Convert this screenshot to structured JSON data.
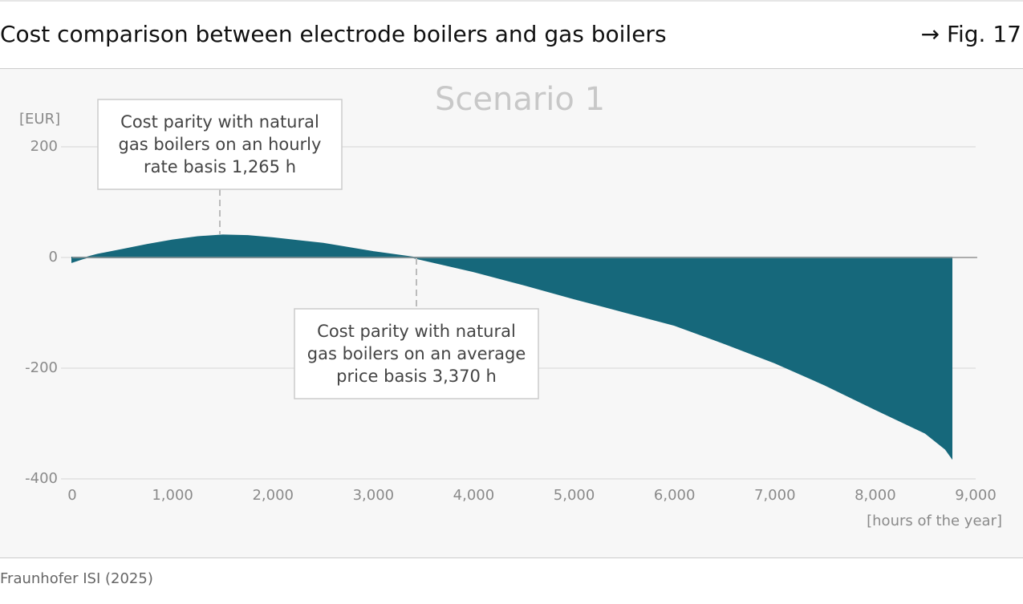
{
  "header": {
    "title": "Cost comparison between electrode boilers and gas boilers",
    "figure": "→ Fig. 17"
  },
  "chart_data": {
    "type": "area",
    "title": "Scenario 1",
    "y_label": "[EUR]",
    "x_label": "[hours of the year]",
    "x": [
      0,
      100,
      250,
      500,
      750,
      1000,
      1250,
      1500,
      1750,
      2000,
      2500,
      3000,
      3400,
      4000,
      4500,
      5000,
      5500,
      6000,
      6500,
      7000,
      7500,
      8000,
      8500,
      8700,
      8760
    ],
    "y": [
      -8,
      -2,
      5,
      14,
      23,
      31,
      37,
      40,
      39,
      35,
      25,
      10,
      0,
      -25,
      -49,
      -74,
      -98,
      -122,
      -155,
      -190,
      -230,
      -274,
      -317,
      -346,
      -361
    ],
    "color": "#16687b",
    "xlim": [
      0,
      9000
    ],
    "xticks": [
      0,
      {
        "value": 1000,
        "label": "1,000"
      },
      {
        "value": 2000,
        "label": "2,000"
      },
      {
        "value": 3000,
        "label": "3,000"
      },
      {
        "value": 4000,
        "label": "4,000"
      },
      {
        "value": 5000,
        "label": "5,000"
      },
      {
        "value": 6000,
        "label": "6,000"
      },
      {
        "value": 7000,
        "label": "7,000"
      },
      {
        "value": 8000,
        "label": "8,000"
      },
      {
        "value": 9000,
        "label": "9,000"
      }
    ],
    "ylim": [
      -400,
      200
    ],
    "yticks": [
      200,
      0,
      -200,
      -400
    ],
    "grid": true,
    "annotations": [
      {
        "lines": [
          "Cost parity with natural",
          "gas boilers on an hourly",
          "rate basis 1,265 h"
        ]
      },
      {
        "lines": [
          "Cost parity with natural",
          "gas boilers on an average",
          "price basis 3,370 h"
        ]
      }
    ]
  },
  "source": "Fraunhofer ISI (2025)"
}
